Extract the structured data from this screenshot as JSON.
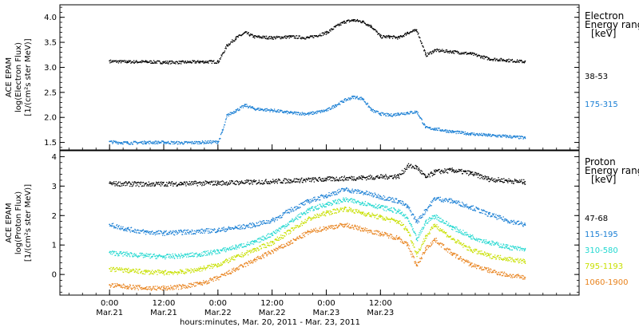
{
  "chart_data": [
    {
      "type": "scatter",
      "ylabel_lines": [
        "ACE EPAM",
        "log(Electron Flux)",
        "[1/(cm²s ster MeV)]"
      ],
      "ylim": [
        1.35,
        4.25
      ],
      "yticks": [
        "1.5",
        "2.0",
        "2.5",
        "3.0",
        "3.5",
        "4.0"
      ],
      "legend_title": [
        "Electron",
        "Energy ranges",
        "[keV]"
      ],
      "series": [
        {
          "name": "38-53",
          "color": "#000000",
          "x": [
            0,
            4,
            8,
            12,
            16,
            20,
            24,
            26,
            28,
            30,
            32,
            36,
            40,
            44,
            48,
            50,
            52,
            54,
            56,
            58,
            60,
            62,
            64,
            66,
            68,
            70,
            72,
            76,
            80,
            84,
            88,
            92
          ],
          "y": [
            3.13,
            3.12,
            3.12,
            3.11,
            3.11,
            3.12,
            3.12,
            3.45,
            3.6,
            3.7,
            3.62,
            3.6,
            3.62,
            3.6,
            3.7,
            3.82,
            3.92,
            3.95,
            3.92,
            3.82,
            3.62,
            3.62,
            3.6,
            3.7,
            3.75,
            3.25,
            3.35,
            3.32,
            3.28,
            3.18,
            3.15,
            3.12
          ]
        },
        {
          "name": "175-315",
          "color": "#1a7fd4",
          "x": [
            0,
            4,
            8,
            12,
            16,
            20,
            24,
            25,
            26,
            28,
            30,
            32,
            36,
            40,
            44,
            48,
            50,
            52,
            54,
            56,
            58,
            60,
            62,
            64,
            66,
            68,
            70,
            72,
            76,
            80,
            84,
            88,
            92
          ],
          "y": [
            1.52,
            1.5,
            1.51,
            1.51,
            1.5,
            1.51,
            1.52,
            1.75,
            2.05,
            2.15,
            2.25,
            2.18,
            2.15,
            2.1,
            2.08,
            2.15,
            2.25,
            2.35,
            2.42,
            2.38,
            2.15,
            2.08,
            2.05,
            2.08,
            2.1,
            2.12,
            1.8,
            1.78,
            1.72,
            1.68,
            1.65,
            1.63,
            1.6
          ]
        }
      ]
    },
    {
      "type": "scatter",
      "ylabel_lines": [
        "ACE EPAM",
        "log(Proton Flux)",
        "[1/(cm²s ster MeV)]"
      ],
      "ylim": [
        -0.7,
        4.2
      ],
      "yticks": [
        "0",
        "1",
        "2",
        "3",
        "4"
      ],
      "legend_title": [
        "Proton",
        "Energy ranges",
        "[keV]"
      ],
      "series": [
        {
          "name": "47-68",
          "color": "#000000",
          "x": [
            0,
            8,
            16,
            24,
            32,
            40,
            48,
            56,
            64,
            66,
            68,
            70,
            72,
            76,
            80,
            84,
            88,
            92
          ],
          "y": [
            3.1,
            3.08,
            3.1,
            3.12,
            3.15,
            3.2,
            3.25,
            3.3,
            3.35,
            3.7,
            3.65,
            3.3,
            3.5,
            3.55,
            3.45,
            3.25,
            3.2,
            3.15
          ]
        },
        {
          "name": "115-195",
          "color": "#1a7fd4",
          "x": [
            0,
            4,
            8,
            12,
            16,
            20,
            24,
            28,
            32,
            36,
            40,
            44,
            48,
            52,
            56,
            60,
            64,
            66,
            68,
            70,
            72,
            76,
            80,
            84,
            88,
            92
          ],
          "y": [
            1.7,
            1.55,
            1.45,
            1.42,
            1.45,
            1.48,
            1.52,
            1.6,
            1.7,
            1.85,
            2.2,
            2.5,
            2.7,
            2.9,
            2.8,
            2.65,
            2.5,
            2.3,
            1.8,
            2.2,
            2.6,
            2.5,
            2.3,
            2.05,
            1.85,
            1.7
          ]
        },
        {
          "name": "310-580",
          "color": "#22d8d0",
          "x": [
            0,
            4,
            8,
            12,
            16,
            20,
            24,
            28,
            32,
            36,
            40,
            44,
            48,
            52,
            56,
            60,
            64,
            66,
            68,
            70,
            72,
            76,
            80,
            84,
            88,
            92
          ],
          "y": [
            0.75,
            0.7,
            0.65,
            0.62,
            0.65,
            0.7,
            0.8,
            0.95,
            1.1,
            1.4,
            1.8,
            2.2,
            2.4,
            2.55,
            2.45,
            2.3,
            2.15,
            1.9,
            1.2,
            1.8,
            2.0,
            1.6,
            1.3,
            1.1,
            0.95,
            0.85
          ]
        },
        {
          "name": "795-1193",
          "color": "#c8e000",
          "x": [
            0,
            4,
            8,
            12,
            16,
            20,
            24,
            28,
            32,
            36,
            40,
            44,
            48,
            52,
            56,
            60,
            64,
            66,
            68,
            70,
            72,
            76,
            80,
            84,
            88,
            92
          ],
          "y": [
            0.2,
            0.15,
            0.1,
            0.08,
            0.1,
            0.2,
            0.35,
            0.6,
            0.85,
            1.1,
            1.5,
            1.9,
            2.1,
            2.25,
            2.1,
            1.95,
            1.8,
            1.5,
            0.7,
            1.3,
            1.7,
            1.2,
            0.85,
            0.65,
            0.55,
            0.45
          ]
        },
        {
          "name": "1060-1900",
          "color": "#e8821c",
          "x": [
            0,
            4,
            8,
            12,
            16,
            20,
            24,
            28,
            32,
            36,
            40,
            44,
            48,
            52,
            56,
            60,
            64,
            66,
            68,
            70,
            72,
            76,
            80,
            84,
            88,
            92
          ],
          "y": [
            -0.35,
            -0.4,
            -0.45,
            -0.45,
            -0.4,
            -0.3,
            -0.1,
            0.2,
            0.5,
            0.8,
            1.1,
            1.45,
            1.6,
            1.7,
            1.55,
            1.4,
            1.25,
            1.0,
            0.3,
            0.9,
            1.2,
            0.7,
            0.35,
            0.15,
            0.0,
            -0.1
          ]
        }
      ]
    }
  ],
  "x_axis": {
    "xlim": [
      -11,
      104
    ],
    "ticks": [
      {
        "x": 0,
        "time": "0:00",
        "date": "Mar.21"
      },
      {
        "x": 12,
        "time": "12:00",
        "date": "Mar.21"
      },
      {
        "x": 24,
        "time": "0:00",
        "date": "Mar.22"
      },
      {
        "x": 36,
        "time": "12:00",
        "date": "Mar.22"
      },
      {
        "x": 48,
        "time": "0:00",
        "date": "Mar.23"
      },
      {
        "x": 60,
        "time": "12:00",
        "date": "Mar.23"
      }
    ],
    "label": "hours:minutes, Mar. 20, 2011 - Mar. 23, 2011"
  }
}
